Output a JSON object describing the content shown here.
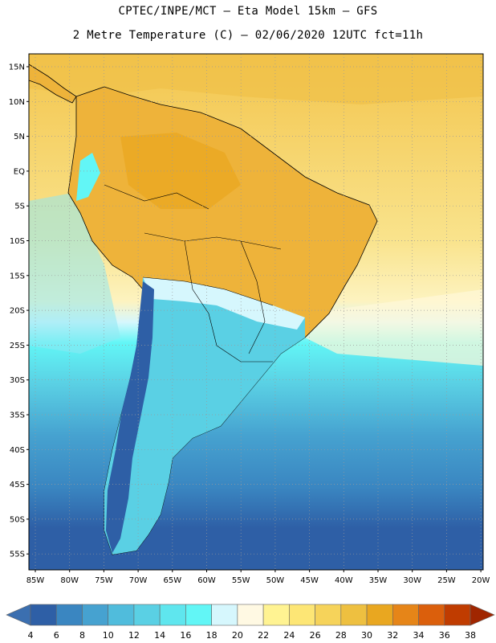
{
  "header": {
    "line1": "CPTEC/INPE/MCT –  Eta Model 15km – GFS",
    "line2": "2 Metre Temperature (C) – 02/06/2020 12UTC fct=11h"
  },
  "map": {
    "region": "South America",
    "lat_labels": [
      "15N",
      "10N",
      "5N",
      "EQ",
      "5S",
      "10S",
      "15S",
      "20S",
      "25S",
      "30S",
      "35S",
      "40S",
      "45S",
      "50S",
      "55S"
    ],
    "lon_labels": [
      "85W",
      "80W",
      "75W",
      "70W",
      "65W",
      "60W",
      "55W",
      "50W",
      "45W",
      "40W",
      "35W",
      "30W",
      "25W",
      "20W"
    ]
  },
  "colorbar": {
    "labels": [
      "4",
      "6",
      "8",
      "10",
      "12",
      "14",
      "16",
      "18",
      "20",
      "22",
      "24",
      "26",
      "28",
      "30",
      "32",
      "34",
      "36",
      "38"
    ],
    "colors": [
      "#3b6fb0",
      "#2e5fa6",
      "#3a86c1",
      "#46a2d0",
      "#50bcdc",
      "#5ad0e4",
      "#5fe6ee",
      "#62f6f6",
      "#d6f7fd",
      "#fff9e3",
      "#fff392",
      "#fde675",
      "#f6d35a",
      "#eec040",
      "#e9a720",
      "#e68518",
      "#db5f0c",
      "#c03c00",
      "#a02600"
    ]
  }
}
